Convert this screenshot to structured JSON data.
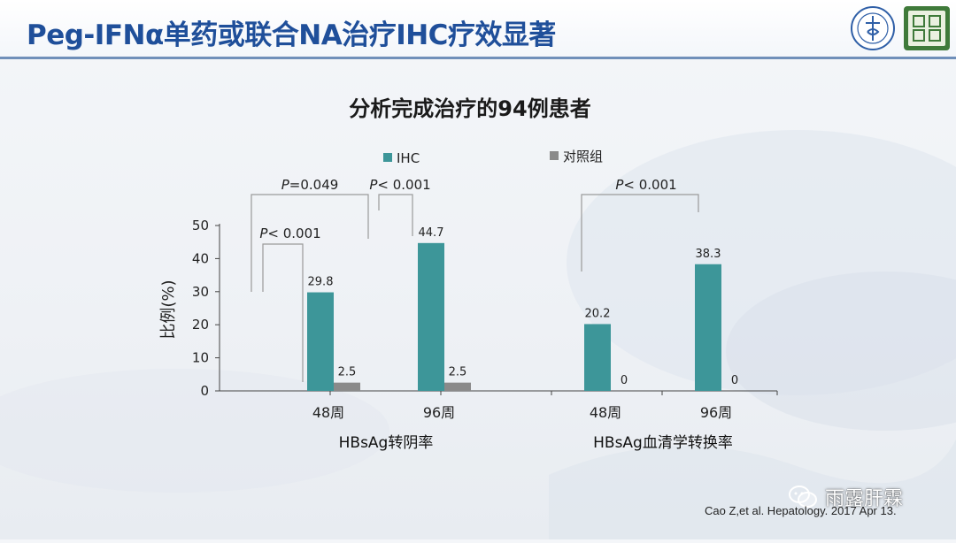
{
  "page_title": "Peg-IFNα单药或联合NA治疗IHC疗效显著",
  "citation": "Cao Z,et al. Hepatology. 2017 Apr 13.",
  "watermark": "雨露肝霖",
  "logos": [
    "hospital-emblem",
    "green-seal"
  ],
  "colors": {
    "ihc": "#3d9699",
    "control": "#8a8a8a",
    "title": "#1f4f9a",
    "rule": "#6f8fb9"
  },
  "chart_data": {
    "type": "bar",
    "title": "分析完成治疗的94例患者",
    "ylabel": "比例(%)",
    "ylim": [
      0,
      50
    ],
    "yticks": [
      0,
      10,
      20,
      30,
      40,
      50
    ],
    "legend": [
      "IHC",
      "对照组"
    ],
    "legend_placement": "top",
    "groups": [
      {
        "name": "HBsAg转阴率",
        "categories": [
          "48周",
          "96周"
        ]
      },
      {
        "name": "HBsAg血清学转换率",
        "categories": [
          "48周",
          "96周"
        ]
      }
    ],
    "categories": [
      "48周",
      "96周",
      "48周",
      "96周"
    ],
    "series": [
      {
        "name": "IHC",
        "values": [
          29.8,
          44.7,
          20.2,
          38.3
        ],
        "labels": [
          "29.8",
          "44.7",
          "20.2",
          "38.3"
        ]
      },
      {
        "name": "对照组",
        "values": [
          2.5,
          2.5,
          0,
          0
        ],
        "labels": [
          "2.5",
          "2.5",
          "0",
          "0"
        ]
      }
    ],
    "annotations": [
      {
        "text_p": "P",
        "text_rest": "< 0.001",
        "between": "IHC 48周 vs 对照组 48周"
      },
      {
        "text_p": "P",
        "text_rest": "=0.049",
        "between": "IHC 48周 vs IHC 96周"
      },
      {
        "text_p": "P",
        "text_rest": "< 0.001",
        "between": "IHC 96周 vs 对照组 96周"
      },
      {
        "text_p": "P",
        "text_rest": "< 0.001",
        "between": "IHC 48周 vs IHC 96周 (血清学转换)"
      }
    ]
  }
}
